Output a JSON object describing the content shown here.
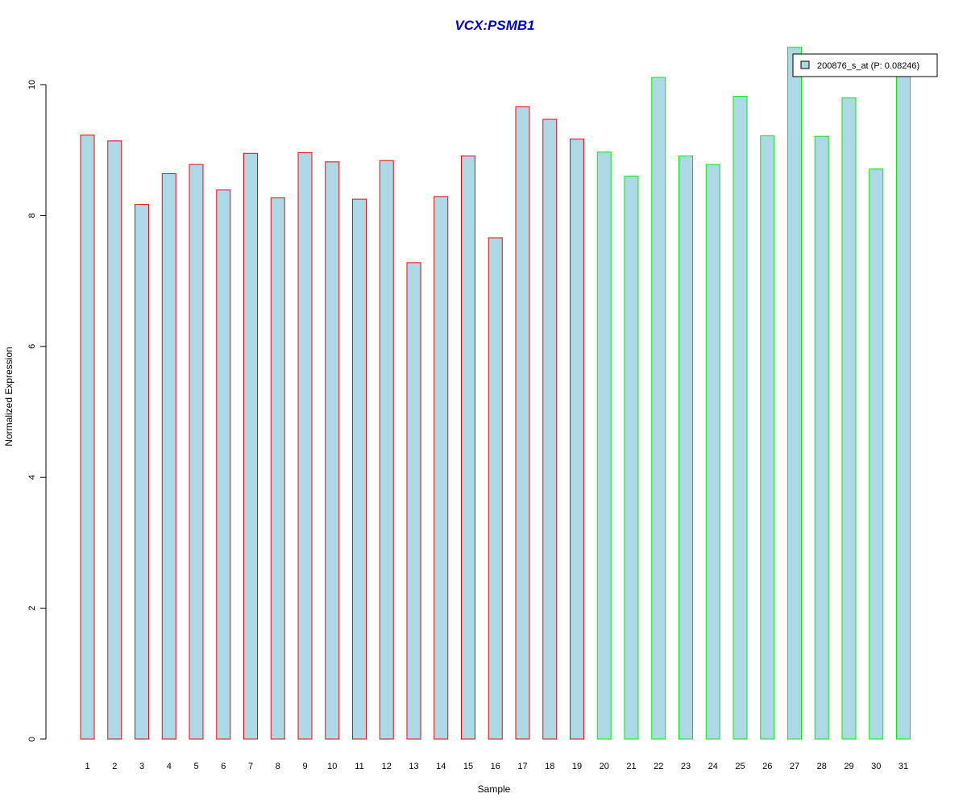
{
  "chart_data": {
    "type": "bar",
    "title": "VCX:PSMB1",
    "xlabel": "Sample",
    "ylabel": "Normalized Expression",
    "ylim": [
      0,
      10.6
    ],
    "yticks": [
      0,
      2,
      4,
      6,
      8,
      10
    ],
    "grid": false,
    "legend_position": "top-right",
    "categories": [
      "1",
      "2",
      "3",
      "4",
      "5",
      "6",
      "7",
      "8",
      "9",
      "10",
      "11",
      "12",
      "13",
      "14",
      "15",
      "16",
      "17",
      "18",
      "19",
      "20",
      "21",
      "22",
      "23",
      "24",
      "25",
      "26",
      "27",
      "28",
      "29",
      "30",
      "31"
    ],
    "series": [
      {
        "name": "200876_s_at (P: 0.08246)",
        "values": [
          9.23,
          9.14,
          8.17,
          8.64,
          8.78,
          8.39,
          8.95,
          8.27,
          8.96,
          8.82,
          8.25,
          8.84,
          7.28,
          8.29,
          8.91,
          7.66,
          9.66,
          9.47,
          9.17,
          8.97,
          8.6,
          10.11,
          8.91,
          8.78,
          9.82,
          9.22,
          10.57,
          9.21,
          9.8,
          8.71,
          10.2
        ]
      }
    ],
    "groups": [
      "red",
      "red",
      "red",
      "red",
      "red",
      "red",
      "red",
      "red",
      "red",
      "red",
      "red",
      "red",
      "red",
      "red",
      "red",
      "red",
      "red",
      "red",
      "red",
      "green",
      "green",
      "green",
      "green",
      "green",
      "green",
      "green",
      "green",
      "green",
      "green",
      "green",
      "green"
    ]
  },
  "colors": {
    "title": "#0000cc",
    "bar_fill": "#add8e6",
    "group_red": "#ff0000",
    "group_green": "#00ee00",
    "axis": "#000000"
  }
}
